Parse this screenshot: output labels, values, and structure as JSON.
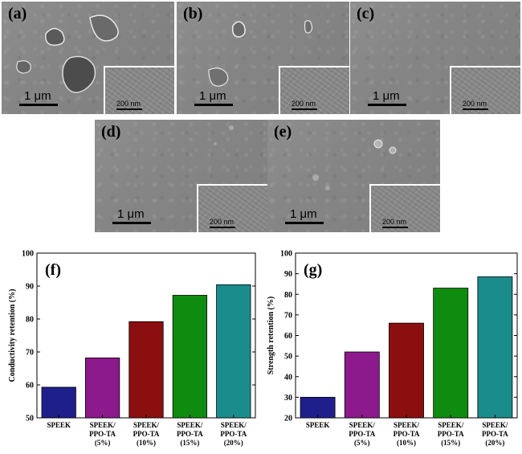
{
  "micrographs": [
    {
      "label": "(a)",
      "scale": "1 μm",
      "inset_scale": "200 nm"
    },
    {
      "label": "(b)",
      "scale": "1 μm",
      "inset_scale": "200 nm"
    },
    {
      "label": "(c)",
      "scale": "1 μm",
      "inset_scale": "200 nm"
    },
    {
      "label": "(d)",
      "scale": "1 μm",
      "inset_scale": "200 nm"
    },
    {
      "label": "(e)",
      "scale": "1 μm",
      "inset_scale": "200 nm"
    }
  ],
  "colors": {
    "speek": "#1f1f8c",
    "ppo5": "#8c1a8c",
    "ppo10": "#8c0f0f",
    "ppo15": "#0f8c0f",
    "ppo20": "#1a8c8c"
  },
  "chart_data": [
    {
      "type": "bar",
      "panel_label": "(f)",
      "categories": [
        [
          "SPEEK"
        ],
        [
          "SPEEK/",
          "PPO-TA",
          "(5%)"
        ],
        [
          "SPEEK/",
          "PPO-TA",
          "(10%)"
        ],
        [
          "SPEEK/",
          "PPO-TA",
          "(15%)"
        ],
        [
          "SPEEK/",
          "PPO-TA",
          "(20%)"
        ]
      ],
      "values": [
        59.3,
        68.2,
        79.2,
        87.2,
        90.4
      ],
      "ylabel": "Conductivity retention (%)",
      "ylim": [
        50,
        100
      ],
      "yticks": [
        50,
        60,
        70,
        80,
        90,
        100
      ],
      "grid": false,
      "legend": "none"
    },
    {
      "type": "bar",
      "panel_label": "(g)",
      "categories": [
        [
          "SPEEK"
        ],
        [
          "SPEEK/",
          "PPO-TA",
          "(5%)"
        ],
        [
          "SPEEK/",
          "PPO-TA",
          "(10%)"
        ],
        [
          "SPEEK/",
          "PPO-TA",
          "(15%)"
        ],
        [
          "SPEEK/",
          "PPO-TA",
          "(20%)"
        ]
      ],
      "values": [
        30.0,
        52.0,
        66.0,
        83.0,
        88.5
      ],
      "ylabel": "Strength retention (%)",
      "ylim": [
        20,
        100
      ],
      "yticks": [
        20,
        30,
        40,
        50,
        60,
        70,
        80,
        90,
        100
      ],
      "grid": false,
      "legend": "none"
    }
  ]
}
